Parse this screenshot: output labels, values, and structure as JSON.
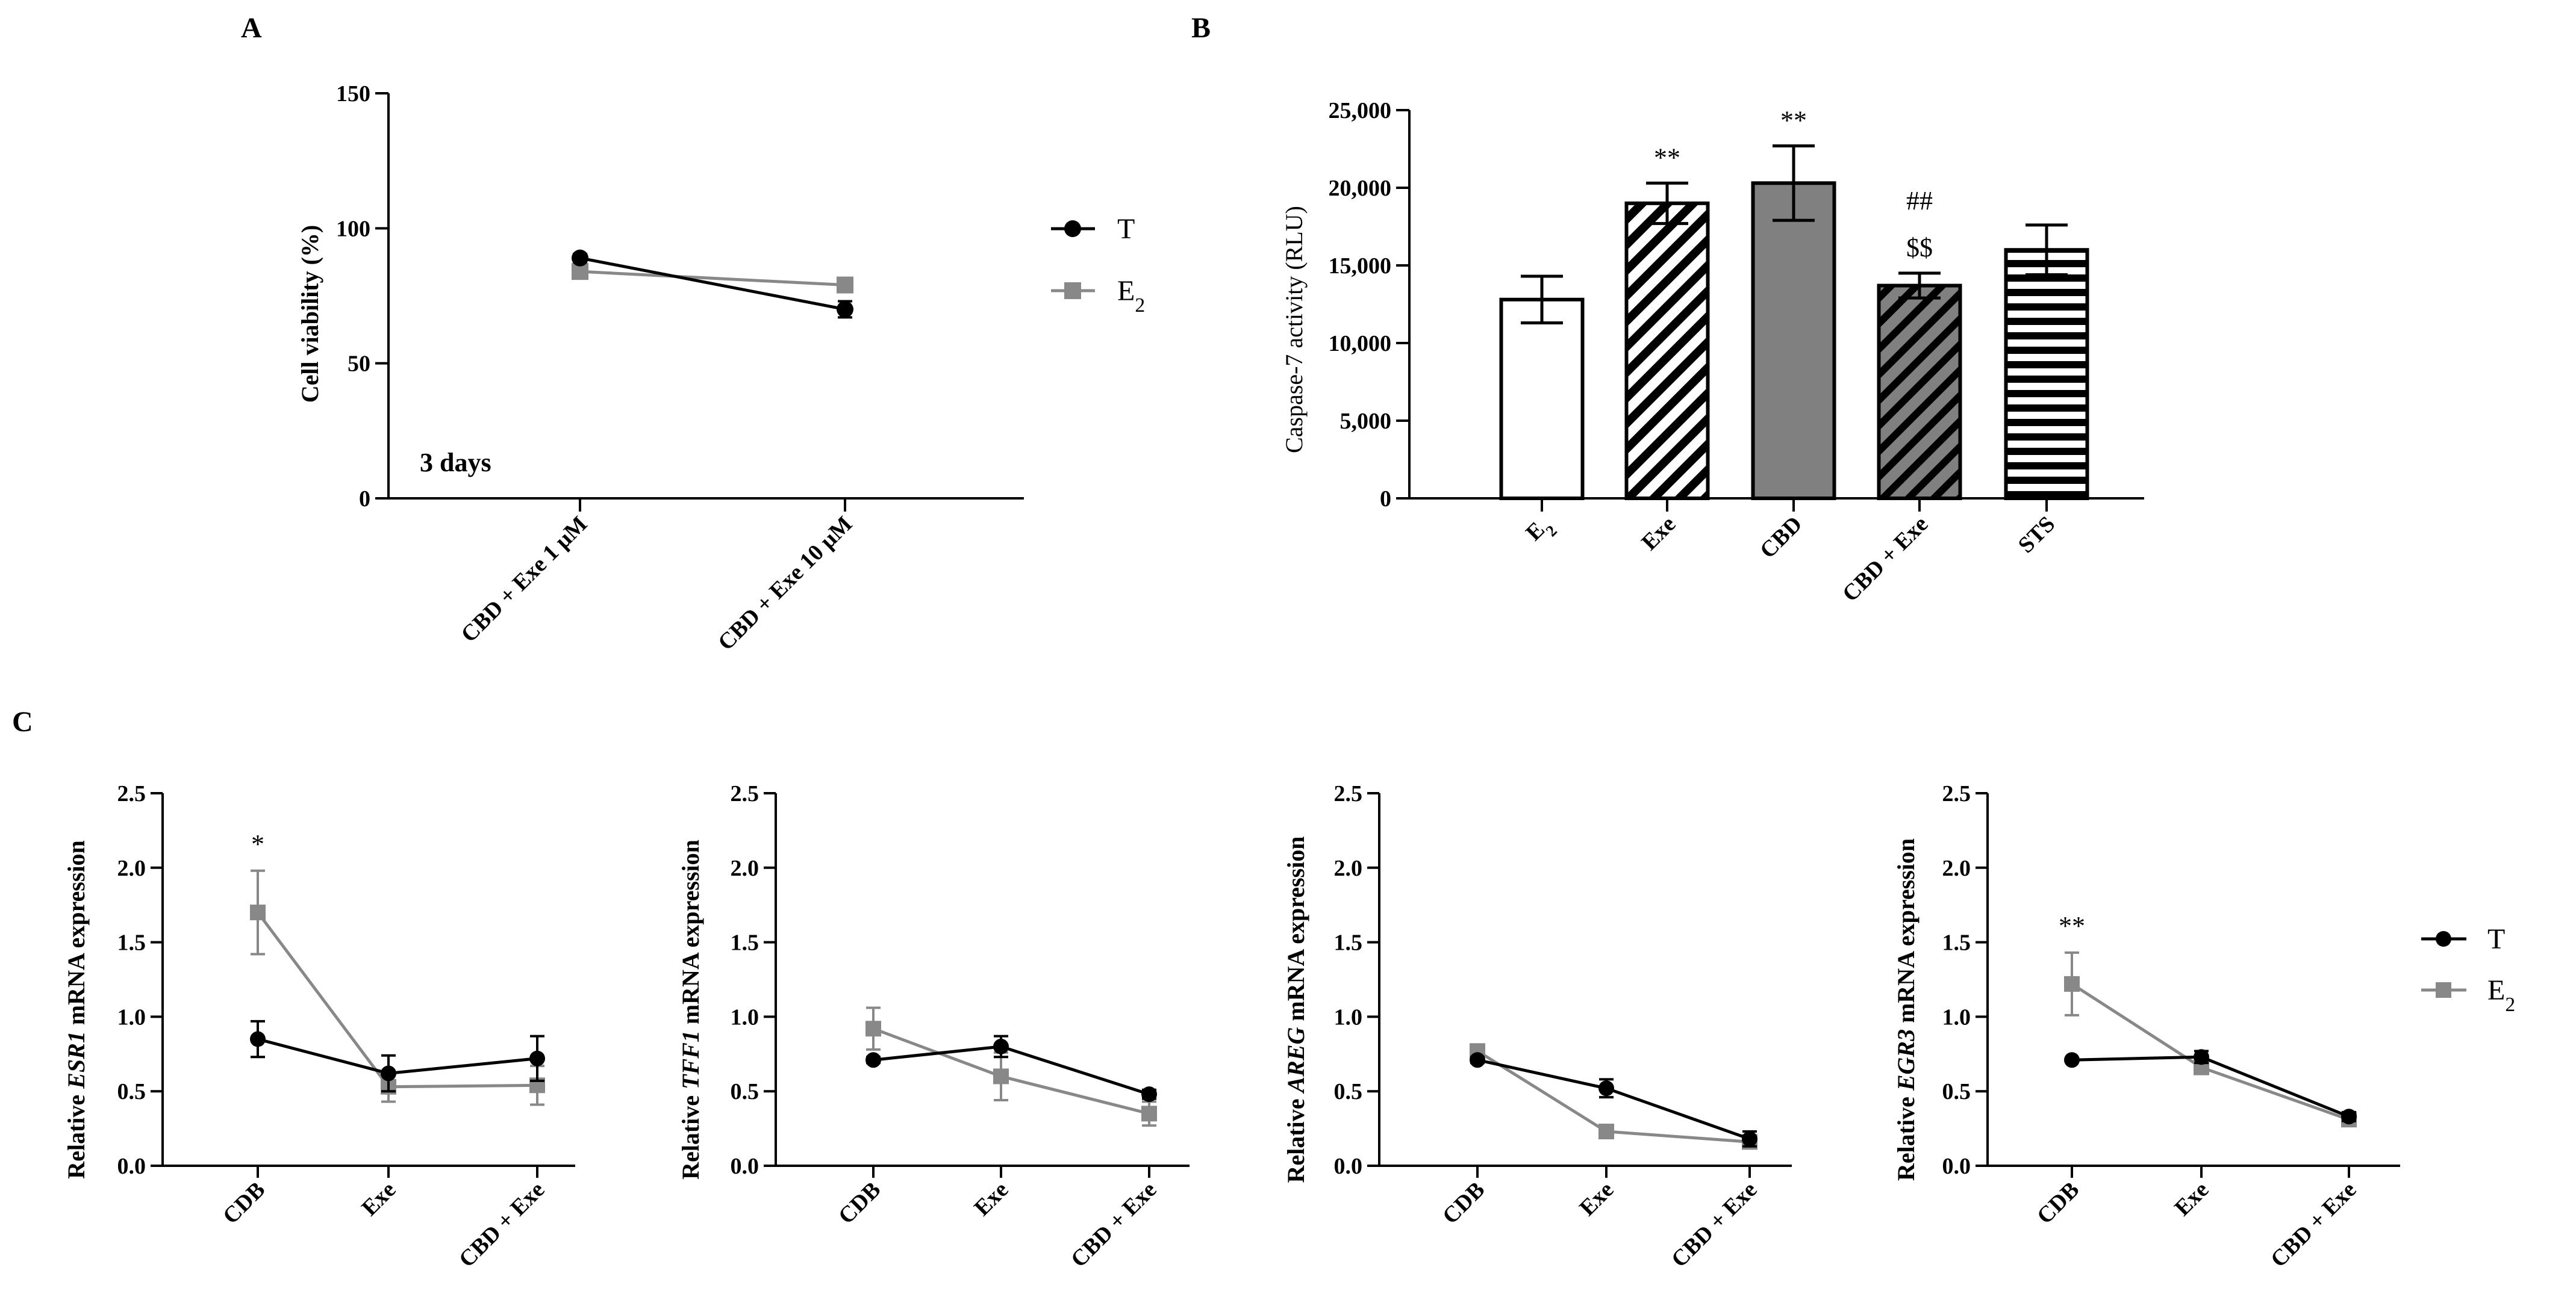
{
  "figure": {
    "panel_labels": [
      "A",
      "B",
      "C"
    ]
  },
  "chart_data": [
    {
      "id": "A",
      "type": "line",
      "title": "",
      "xlabel": "",
      "ylabel": "Cell viability (%)",
      "ylim": [
        0,
        150
      ],
      "yticks": [
        0,
        50,
        100,
        150
      ],
      "categories": [
        "CBD + Exe 1  μM",
        "CBD + Exe 10  μM"
      ],
      "annotation": "3 days",
      "legend": {
        "placement": "right",
        "entries": [
          "T",
          "E2"
        ]
      },
      "series": [
        {
          "name": "T",
          "color": "#000000",
          "marker": "circle",
          "values": [
            89,
            70
          ],
          "errors": [
            1.5,
            3
          ]
        },
        {
          "name": "E2",
          "color": "#888888",
          "marker": "square",
          "values": [
            84,
            79
          ],
          "errors": [
            1.5,
            1.5
          ]
        }
      ]
    },
    {
      "id": "B",
      "type": "bar",
      "title": "",
      "xlabel": "",
      "ylabel": "Caspase-7 activity (RLU)",
      "ylim": [
        0,
        25000
      ],
      "yticks": [
        0,
        5000,
        10000,
        15000,
        20000,
        25000
      ],
      "ytick_labels": [
        "0",
        "5,000",
        "10,000",
        "15,000",
        "20,000",
        "25,000"
      ],
      "categories": [
        "E2",
        "Exe",
        "CBD",
        "CBD + Exe",
        "STS"
      ],
      "values": [
        12800,
        19000,
        20300,
        13700,
        16000
      ],
      "errors": [
        1500,
        1300,
        2400,
        800,
        1600
      ],
      "fills": [
        "white",
        "diagonal",
        "gray",
        "diagonal-gray",
        "horizontal"
      ],
      "sig_labels": [
        "",
        "**",
        "**",
        "## $$",
        ""
      ]
    },
    {
      "id": "C1",
      "type": "line",
      "gene": "ESR1",
      "ylabel_prefix": "Relative ",
      "ylabel_suffix": " mRNA expression",
      "ylim": [
        0,
        2.5
      ],
      "yticks": [
        "0.0",
        "0.5",
        "1.0",
        "1.5",
        "2.0",
        "2.5"
      ],
      "categories": [
        "CDB",
        "Exe",
        "CBD + Exe"
      ],
      "sig_labels": [
        "*",
        "",
        ""
      ],
      "series": [
        {
          "name": "T",
          "color": "#000000",
          "marker": "circle",
          "values": [
            0.85,
            0.62,
            0.72
          ],
          "errors": [
            0.12,
            0.12,
            0.15
          ]
        },
        {
          "name": "E2",
          "color": "#888888",
          "marker": "square",
          "values": [
            1.7,
            0.53,
            0.54
          ],
          "errors": [
            0.28,
            0.1,
            0.13
          ]
        }
      ]
    },
    {
      "id": "C2",
      "type": "line",
      "gene": "TFF1",
      "ylabel_prefix": "Relative ",
      "ylabel_suffix": " mRNA expression",
      "ylim": [
        0,
        2.5
      ],
      "yticks": [
        "0.0",
        "0.5",
        "1.0",
        "1.5",
        "2.0",
        "2.5"
      ],
      "categories": [
        "CDB",
        "Exe",
        "CBD + Exe"
      ],
      "sig_labels": [
        "",
        "",
        ""
      ],
      "series": [
        {
          "name": "T",
          "color": "#000000",
          "marker": "circle",
          "values": [
            0.71,
            0.8,
            0.48
          ],
          "errors": [
            0.02,
            0.07,
            0.03
          ]
        },
        {
          "name": "E2",
          "color": "#888888",
          "marker": "square",
          "values": [
            0.92,
            0.6,
            0.35
          ],
          "errors": [
            0.14,
            0.16,
            0.08
          ]
        }
      ]
    },
    {
      "id": "C3",
      "type": "line",
      "gene": "AREG",
      "ylabel_prefix": "Relative ",
      "ylabel_suffix": " mRNA expression",
      "ylim": [
        0,
        2.5
      ],
      "yticks": [
        "0.0",
        "0.5",
        "1.0",
        "1.5",
        "2.0",
        "2.5"
      ],
      "categories": [
        "CDB",
        "Exe",
        "CBD + Exe"
      ],
      "sig_labels": [
        "",
        "",
        ""
      ],
      "series": [
        {
          "name": "T",
          "color": "#000000",
          "marker": "circle",
          "values": [
            0.71,
            0.52,
            0.18
          ],
          "errors": [
            0.02,
            0.06,
            0.05
          ]
        },
        {
          "name": "E2",
          "color": "#888888",
          "marker": "square",
          "values": [
            0.77,
            0.23,
            0.16
          ],
          "errors": [
            0.02,
            0.02,
            0.02
          ]
        }
      ]
    },
    {
      "id": "C4",
      "type": "line",
      "gene": "EGR3",
      "ylabel_prefix": "Relative ",
      "ylabel_suffix": " mRNA expression",
      "ylim": [
        0,
        2.5
      ],
      "yticks": [
        "0.0",
        "0.5",
        "1.0",
        "1.5",
        "2.0",
        "2.5"
      ],
      "categories": [
        "CDB",
        "Exe",
        "CBD + Exe"
      ],
      "sig_labels": [
        "**",
        "",
        ""
      ],
      "series": [
        {
          "name": "T",
          "color": "#000000",
          "marker": "circle",
          "values": [
            0.71,
            0.73,
            0.33
          ],
          "errors": [
            0.01,
            0.04,
            0.03
          ]
        },
        {
          "name": "E2",
          "color": "#888888",
          "marker": "square",
          "values": [
            1.22,
            0.66,
            0.31
          ],
          "errors": [
            0.21,
            0.03,
            0.03
          ]
        }
      ]
    }
  ],
  "legend_C": {
    "placement": "right",
    "entries": [
      "T",
      "E2"
    ]
  }
}
